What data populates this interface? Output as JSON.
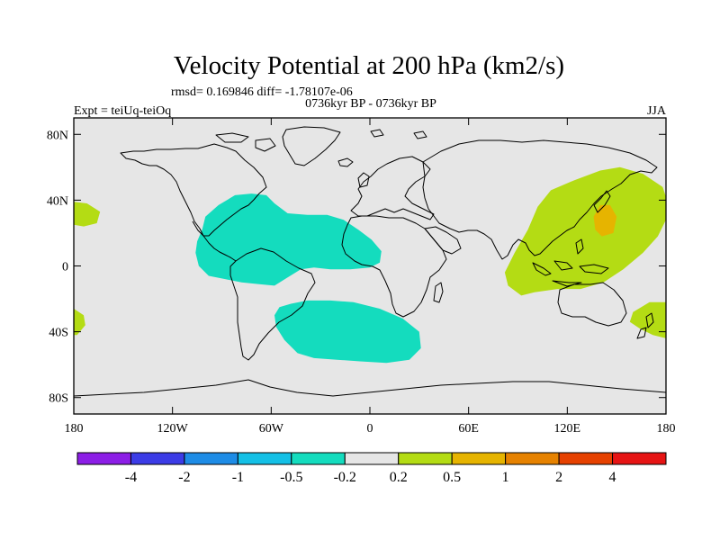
{
  "chart_data": {
    "type": "contour-map",
    "title": "Velocity Potential at 200 hPa (km2/s)",
    "stats_text": "rmsd= 0.169846 diff= -1.78107e-06",
    "left_label": "Expt = teiUq-teiOq",
    "center_label": "0736kyr BP - 0736kyr BP",
    "right_label": "JJA",
    "lon_range": [
      -180,
      180
    ],
    "lat_range": [
      -90,
      90
    ],
    "x_ticks": [
      {
        "lon": -180,
        "label": "180"
      },
      {
        "lon": -120,
        "label": "120W"
      },
      {
        "lon": -60,
        "label": "60W"
      },
      {
        "lon": 0,
        "label": "0"
      },
      {
        "lon": 60,
        "label": "60E"
      },
      {
        "lon": 120,
        "label": "120E"
      },
      {
        "lon": 180,
        "label": "180"
      }
    ],
    "y_ticks": [
      {
        "lat": 80,
        "label": "80N"
      },
      {
        "lat": 40,
        "label": "40N"
      },
      {
        "lat": 0,
        "label": "0"
      },
      {
        "lat": -40,
        "label": "40S"
      },
      {
        "lat": -80,
        "label": "80S"
      }
    ],
    "colorbar": {
      "colors": [
        "#8c1ee6",
        "#3c3ce6",
        "#1e8ce6",
        "#14c0e6",
        "#14dcbe",
        "#e6e6e6",
        "#b4dc14",
        "#e6b400",
        "#e68200",
        "#e64100",
        "#e61414"
      ],
      "labels": [
        {
          "boundary": 1,
          "text": "-4"
        },
        {
          "boundary": 2,
          "text": "-2"
        },
        {
          "boundary": 3,
          "text": "-1"
        },
        {
          "boundary": 4,
          "text": "-0.5"
        },
        {
          "boundary": 5,
          "text": "-0.2"
        },
        {
          "boundary": 6,
          "text": "0.2"
        },
        {
          "boundary": 7,
          "text": "0.5"
        },
        {
          "boundary": 8,
          "text": "1"
        },
        {
          "boundary": 9,
          "text": "2"
        },
        {
          "boundary": 10,
          "text": "4"
        }
      ]
    },
    "regions": [
      {
        "name": "negative-caribbean-atlantic",
        "category": "-0.5 to -0.2",
        "color": "#14dcbe",
        "points": [
          [
            -102,
            22
          ],
          [
            -100,
            30
          ],
          [
            -92,
            37
          ],
          [
            -82,
            43
          ],
          [
            -72,
            44
          ],
          [
            -63,
            43
          ],
          [
            -58,
            38
          ],
          [
            -50,
            32
          ],
          [
            -38,
            31
          ],
          [
            -26,
            31
          ],
          [
            -16,
            28
          ],
          [
            -7,
            22
          ],
          [
            1,
            16
          ],
          [
            7,
            9
          ],
          [
            6,
            2
          ],
          [
            0,
            -1
          ],
          [
            -12,
            -2
          ],
          [
            -24,
            -2
          ],
          [
            -34,
            -1
          ],
          [
            -42,
            -2
          ],
          [
            -50,
            -7
          ],
          [
            -58,
            -12
          ],
          [
            -68,
            -11
          ],
          [
            -78,
            -10
          ],
          [
            -88,
            -8
          ],
          [
            -98,
            -6
          ],
          [
            -104,
            0
          ],
          [
            -106,
            8
          ],
          [
            -105,
            15
          ]
        ]
      },
      {
        "name": "negative-south-atlantic",
        "category": "-0.5 to -0.2",
        "color": "#14dcbe",
        "points": [
          [
            -55,
            -25
          ],
          [
            -48,
            -23
          ],
          [
            -38,
            -21
          ],
          [
            -24,
            -21
          ],
          [
            -10,
            -22
          ],
          [
            6,
            -26
          ],
          [
            20,
            -32
          ],
          [
            30,
            -40
          ],
          [
            31,
            -50
          ],
          [
            24,
            -57
          ],
          [
            10,
            -59
          ],
          [
            -6,
            -58
          ],
          [
            -20,
            -57
          ],
          [
            -34,
            -56
          ],
          [
            -44,
            -53
          ],
          [
            -52,
            -45
          ],
          [
            -57,
            -37
          ],
          [
            -58,
            -30
          ]
        ]
      },
      {
        "name": "positive-west-pacific",
        "category": "0.2 to 0.5",
        "color": "#b4dc14",
        "points": [
          [
            110,
            46
          ],
          [
            124,
            52
          ],
          [
            140,
            58
          ],
          [
            152,
            60
          ],
          [
            166,
            56
          ],
          [
            178,
            48
          ],
          [
            180,
            42
          ],
          [
            180,
            28
          ],
          [
            175,
            18
          ],
          [
            166,
            8
          ],
          [
            154,
            -2
          ],
          [
            142,
            -10
          ],
          [
            128,
            -14
          ],
          [
            114,
            -14
          ],
          [
            100,
            -16
          ],
          [
            92,
            -18
          ],
          [
            84,
            -12
          ],
          [
            82,
            -4
          ],
          [
            88,
            8
          ],
          [
            96,
            22
          ],
          [
            102,
            36
          ]
        ]
      },
      {
        "name": "positive-southwest-pacific",
        "category": "0.2 to 0.5",
        "color": "#b4dc14",
        "points": [
          [
            160,
            -28
          ],
          [
            170,
            -22
          ],
          [
            180,
            -22
          ],
          [
            180,
            -44
          ],
          [
            172,
            -42
          ],
          [
            164,
            -38
          ],
          [
            158,
            -34
          ]
        ]
      },
      {
        "name": "positive-east-pacific-north",
        "category": "0.2 to 0.5",
        "color": "#b4dc14",
        "points": [
          [
            -180,
            39
          ],
          [
            -172,
            38
          ],
          [
            -164,
            33
          ],
          [
            -166,
            26
          ],
          [
            -174,
            24
          ],
          [
            -180,
            25
          ]
        ]
      },
      {
        "name": "positive-east-pacific-south",
        "category": "0.2 to 0.5",
        "color": "#b4dc14",
        "points": [
          [
            -180,
            -26
          ],
          [
            -174,
            -30
          ],
          [
            -173,
            -36
          ],
          [
            -178,
            -42
          ],
          [
            -180,
            -42
          ]
        ]
      },
      {
        "name": "positive-east-asia-core",
        "category": "0.5 to 1",
        "color": "#e6b400",
        "points": [
          [
            136,
            30
          ],
          [
            140,
            37
          ],
          [
            146,
            37
          ],
          [
            150,
            30
          ],
          [
            148,
            20
          ],
          [
            141,
            18
          ],
          [
            137,
            22
          ]
        ]
      }
    ],
    "map_style": {
      "ocean_fill": "#e6e6e6",
      "coastline_color": "#000000"
    }
  }
}
